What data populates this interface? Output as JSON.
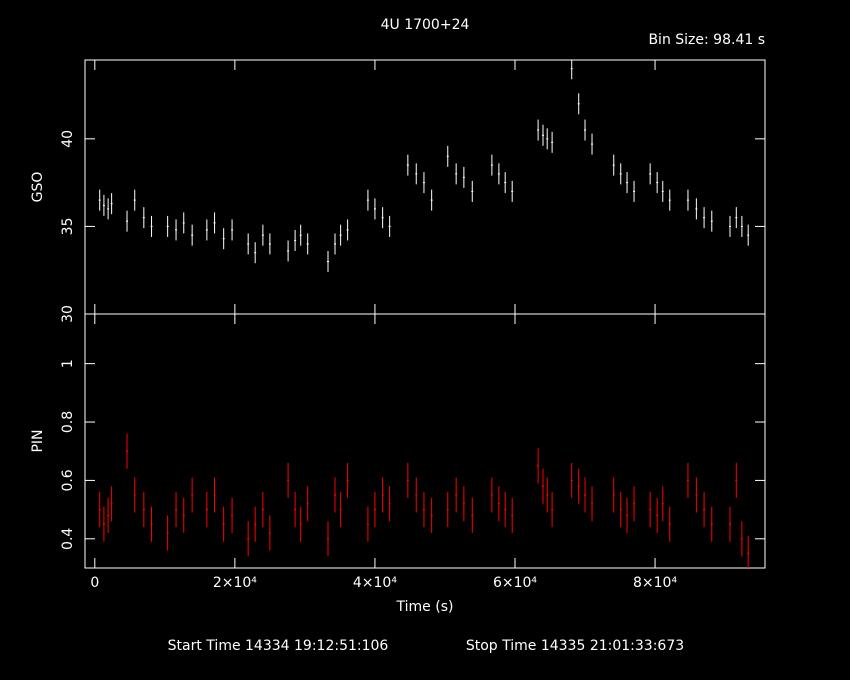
{
  "header": {
    "title": "4U 1700+24",
    "bin_size": "Bin Size: 98.41 s",
    "start_time": "Start Time 14334 19:12:51:106",
    "stop_time": "Stop Time 14335 21:01:33:673"
  },
  "chart_data": [
    {
      "type": "errorbar",
      "ylabel": "GSO",
      "color": "#ffffff",
      "x": [
        700,
        1300,
        1900,
        2400,
        4600,
        5700,
        7000,
        8100,
        10400,
        11600,
        12700,
        13900,
        16000,
        17100,
        18400,
        19600,
        21900,
        22900,
        24000,
        25000,
        27600,
        28600,
        29400,
        30400,
        33300,
        34300,
        35100,
        36100,
        39000,
        40000,
        41100,
        42100,
        44700,
        45900,
        47000,
        48100,
        50400,
        51600,
        52700,
        53900,
        56700,
        57700,
        58600,
        59600,
        63300,
        64000,
        64600,
        65300,
        68100,
        69100,
        70000,
        71000,
        74100,
        75100,
        76000,
        77000,
        79300,
        80300,
        81100,
        82100,
        84700,
        85900,
        87000,
        88100,
        90700,
        91600,
        92400,
        93300
      ],
      "values": [
        36.5,
        36.2,
        36,
        36.3,
        35.3,
        36.5,
        35.5,
        35,
        35,
        34.8,
        35.2,
        34.5,
        34.8,
        35.2,
        34.3,
        34.8,
        34,
        33.5,
        34.5,
        34,
        33.6,
        34.2,
        34.5,
        34,
        33,
        34,
        34.5,
        34.8,
        36.5,
        36,
        35.5,
        35,
        38.5,
        38,
        37.5,
        36.5,
        39,
        38,
        37.8,
        37,
        38.5,
        38,
        37.5,
        37,
        40.5,
        40.2,
        40,
        39.8,
        44,
        42,
        40.5,
        39.7,
        38.5,
        38,
        37.5,
        37,
        38,
        37.5,
        37,
        36.5,
        36.5,
        36,
        35.5,
        35.3,
        35,
        35.5,
        35,
        34.5
      ],
      "yerr": 0.6,
      "xlim": [
        -1400,
        95700
      ],
      "ylim": [
        30,
        44.5
      ],
      "yticks": [
        30,
        35,
        40
      ]
    },
    {
      "type": "errorbar",
      "ylabel": "PIN",
      "xlabel": "Time (s)",
      "color": "#ff0000",
      "x": [
        700,
        1300,
        1900,
        2400,
        4600,
        5700,
        7000,
        8100,
        10400,
        11600,
        12700,
        13900,
        16000,
        17100,
        18400,
        19600,
        21900,
        22900,
        24000,
        25000,
        27600,
        28600,
        29400,
        30400,
        33300,
        34300,
        35100,
        36100,
        39000,
        40000,
        41100,
        42100,
        44700,
        45900,
        47000,
        48100,
        50400,
        51600,
        52700,
        53900,
        56700,
        57700,
        58600,
        59600,
        63300,
        64000,
        64600,
        65300,
        68100,
        69100,
        70000,
        71000,
        74100,
        75100,
        76000,
        77000,
        79300,
        80300,
        81100,
        82100,
        84700,
        85900,
        87000,
        88100,
        90700,
        91600,
        92400,
        93300
      ],
      "values": [
        0.5,
        0.45,
        0.48,
        0.52,
        0.7,
        0.55,
        0.5,
        0.45,
        0.42,
        0.5,
        0.48,
        0.55,
        0.5,
        0.55,
        0.45,
        0.48,
        0.4,
        0.45,
        0.5,
        0.42,
        0.6,
        0.5,
        0.45,
        0.52,
        0.4,
        0.55,
        0.5,
        0.6,
        0.45,
        0.5,
        0.55,
        0.52,
        0.6,
        0.55,
        0.5,
        0.48,
        0.5,
        0.55,
        0.52,
        0.48,
        0.55,
        0.52,
        0.5,
        0.48,
        0.65,
        0.58,
        0.55,
        0.5,
        0.6,
        0.58,
        0.55,
        0.52,
        0.55,
        0.5,
        0.48,
        0.52,
        0.5,
        0.48,
        0.52,
        0.45,
        0.6,
        0.55,
        0.5,
        0.45,
        0.45,
        0.6,
        0.4,
        0.35
      ],
      "yerr": 0.06,
      "xlim": [
        -1400,
        95700
      ],
      "ylim": [
        0.3,
        1.17
      ],
      "yticks": [
        0.4,
        0.6,
        0.8,
        1
      ],
      "xticks": [
        0,
        {
          "value": 20000,
          "label": "2×10⁴"
        },
        {
          "value": 40000,
          "label": "4×10⁴"
        },
        {
          "value": 60000,
          "label": "6×10⁴"
        },
        {
          "value": 80000,
          "label": "8×10⁴"
        }
      ]
    }
  ]
}
